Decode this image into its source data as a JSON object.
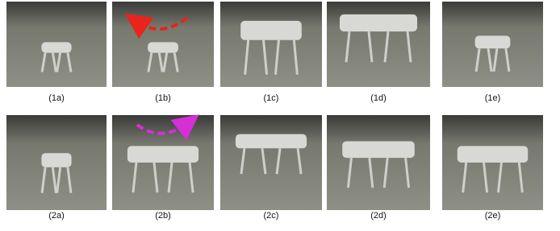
{
  "figure": {
    "rows": [
      [
        "(1a)",
        "(1b)",
        "(1c)",
        "(1d)",
        "(1e)"
      ],
      [
        "(2a)",
        "(2b)",
        "(2c)",
        "(2d)",
        "(2e)"
      ]
    ]
  }
}
